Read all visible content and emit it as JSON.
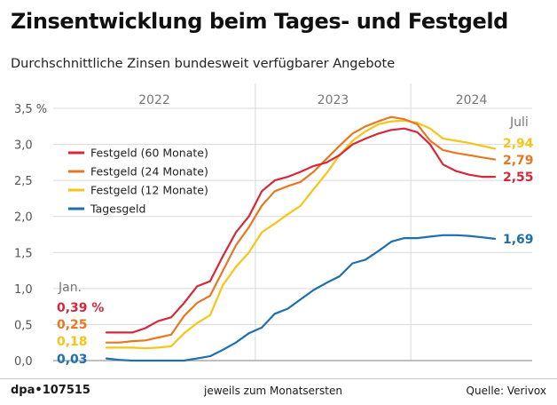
{
  "title": "Zinsentwicklung beim Tages- und Festgeld",
  "subtitle": "Durchschnittliche Zinsen bundesweit verfügbarer Angebote",
  "footer": {
    "brand": "dpa•107515",
    "note": "jeweils zum Monatsersten",
    "source": "Quelle: Verivox"
  },
  "colors": {
    "festgeld60": "#d6283b",
    "festgeld24": "#e87722",
    "festgeld12": "#f5c518",
    "tagesgeld": "#1f6fae",
    "grid": "#d9d9d9",
    "axis": "#7a7a7a"
  },
  "chart_data": {
    "type": "line",
    "title": "Zinsentwicklung beim Tages- und Festgeld",
    "xlabel": "",
    "ylabel": "",
    "ylim": [
      0,
      3.5
    ],
    "yticks": [
      "0,0",
      "0,5",
      "1,0",
      "1,5",
      "2,0",
      "2,5",
      "3,0",
      "3,5 %"
    ],
    "years": [
      "2022",
      "2023",
      "2024"
    ],
    "start_label": "Jan.",
    "end_label": "Juli",
    "x": [
      "01/2022",
      "02/2022",
      "03/2022",
      "04/2022",
      "05/2022",
      "06/2022",
      "07/2022",
      "08/2022",
      "09/2022",
      "10/2022",
      "11/2022",
      "12/2022",
      "01/2023",
      "02/2023",
      "03/2023",
      "04/2023",
      "05/2023",
      "06/2023",
      "07/2023",
      "08/2023",
      "09/2023",
      "10/2023",
      "11/2023",
      "12/2023",
      "01/2024",
      "02/2024",
      "03/2024",
      "04/2024",
      "05/2024",
      "06/2024",
      "07/2024"
    ],
    "series": [
      {
        "key": "festgeld60",
        "name": "Festgeld (60 Monate)",
        "values": [
          0.39,
          0.39,
          0.39,
          0.45,
          0.55,
          0.6,
          0.8,
          1.03,
          1.1,
          1.45,
          1.78,
          2.0,
          2.35,
          2.5,
          2.55,
          2.62,
          2.7,
          2.75,
          2.85,
          3.0,
          3.08,
          3.15,
          3.2,
          3.22,
          3.17,
          3.0,
          2.72,
          2.63,
          2.58,
          2.55,
          2.55
        ],
        "start_label": "0,39 %",
        "end_label": "2,55"
      },
      {
        "key": "festgeld24",
        "name": "Festgeld (24 Monate)",
        "values": [
          0.25,
          0.25,
          0.27,
          0.28,
          0.32,
          0.36,
          0.62,
          0.8,
          0.9,
          1.25,
          1.6,
          1.85,
          2.15,
          2.35,
          2.42,
          2.48,
          2.62,
          2.8,
          2.98,
          3.15,
          3.25,
          3.32,
          3.38,
          3.35,
          3.28,
          3.05,
          2.92,
          2.88,
          2.85,
          2.82,
          2.79
        ],
        "start_label": "0,25",
        "end_label": "2,79"
      },
      {
        "key": "festgeld12",
        "name": "Festgeld (12 Monate)",
        "values": [
          0.18,
          0.18,
          0.18,
          0.17,
          0.18,
          0.2,
          0.38,
          0.52,
          0.63,
          1.05,
          1.3,
          1.5,
          1.78,
          1.9,
          2.03,
          2.15,
          2.38,
          2.6,
          2.85,
          3.05,
          3.18,
          3.28,
          3.32,
          3.33,
          3.3,
          3.22,
          3.08,
          3.05,
          3.02,
          2.98,
          2.94
        ],
        "start_label": "0,18",
        "end_label": "2,94"
      },
      {
        "key": "tagesgeld",
        "name": "Tagesgeld",
        "values": [
          0.03,
          0.01,
          0.0,
          0.0,
          0.0,
          0.0,
          0.0,
          0.03,
          0.06,
          0.15,
          0.25,
          0.38,
          0.46,
          0.65,
          0.72,
          0.85,
          0.98,
          1.08,
          1.17,
          1.35,
          1.4,
          1.52,
          1.65,
          1.7,
          1.7,
          1.72,
          1.74,
          1.74,
          1.73,
          1.71,
          1.69
        ],
        "start_label": "0,03",
        "end_label": "1,69"
      }
    ]
  }
}
